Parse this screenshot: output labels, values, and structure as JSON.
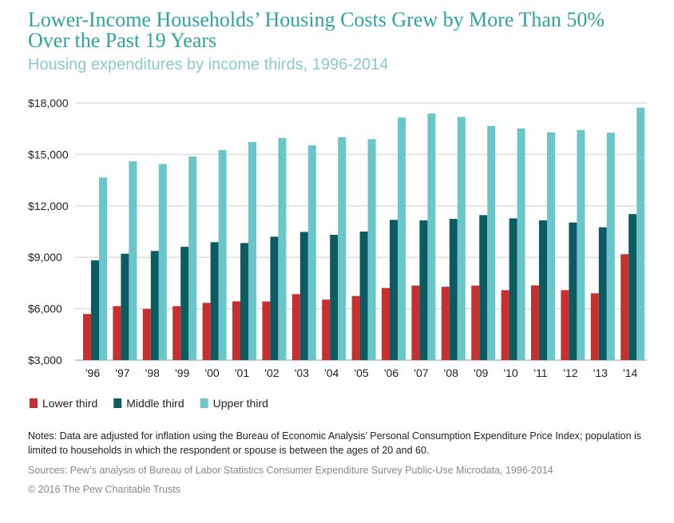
{
  "chart_data": {
    "type": "bar",
    "title": "Lower-Income Households’ Housing Costs Grew by More Than 50% Over the Past 19 Years",
    "subtitle": "Housing expenditures by income thirds, 1996-2014",
    "xlabel": "",
    "ylabel": "",
    "ylim": [
      3000,
      18000
    ],
    "yticks": [
      3000,
      6000,
      9000,
      12000,
      15000,
      18000
    ],
    "ytick_labels": [
      "$3,000",
      "$6,000",
      "$9,000",
      "$12,000",
      "$15,000",
      "$18,000"
    ],
    "grid": true,
    "legend_placement": "bottom-left",
    "categories": [
      "'96",
      "'97",
      "'98",
      "'99",
      "'00",
      "'01",
      "'02",
      "'03",
      "'04",
      "'05",
      "'06",
      "'07",
      "'08",
      "'09",
      "'10",
      "'11",
      "'12",
      "'13",
      "'14"
    ],
    "series": [
      {
        "name": "Lower third",
        "color": "#c8302f",
        "values": [
          5690,
          6150,
          5990,
          6150,
          6340,
          6430,
          6420,
          6850,
          6530,
          6740,
          7210,
          7350,
          7280,
          7350,
          7080,
          7360,
          7080,
          6900,
          9180
        ]
      },
      {
        "name": "Middle third",
        "color": "#0b5b63",
        "values": [
          8820,
          9210,
          9370,
          9610,
          9880,
          9830,
          10200,
          10480,
          10310,
          10500,
          11180,
          11150,
          11240,
          11460,
          11270,
          11150,
          11030,
          10750,
          11520
        ]
      },
      {
        "name": "Upper third",
        "color": "#6bc6c9",
        "values": [
          13650,
          14600,
          14440,
          14880,
          15260,
          15720,
          15950,
          15530,
          16010,
          15890,
          17150,
          17390,
          17190,
          16660,
          16510,
          16290,
          16430,
          16270,
          17730
        ]
      }
    ]
  },
  "footer": {
    "notes": "Notes: Data are adjusted for inflation using the Bureau of Economic Analysis’ Personal Consumption Expenditure Price Index; population is limited to households in which the respondent or spouse is between the ages of 20 and 60.",
    "sources": "Sources: Pew’s analysis of Bureau of Labor Statistics Consumer Expenditure Survey Public-Use Microdata, 1996-2014",
    "copyright": "© 2016 The Pew Charitable Trusts"
  }
}
